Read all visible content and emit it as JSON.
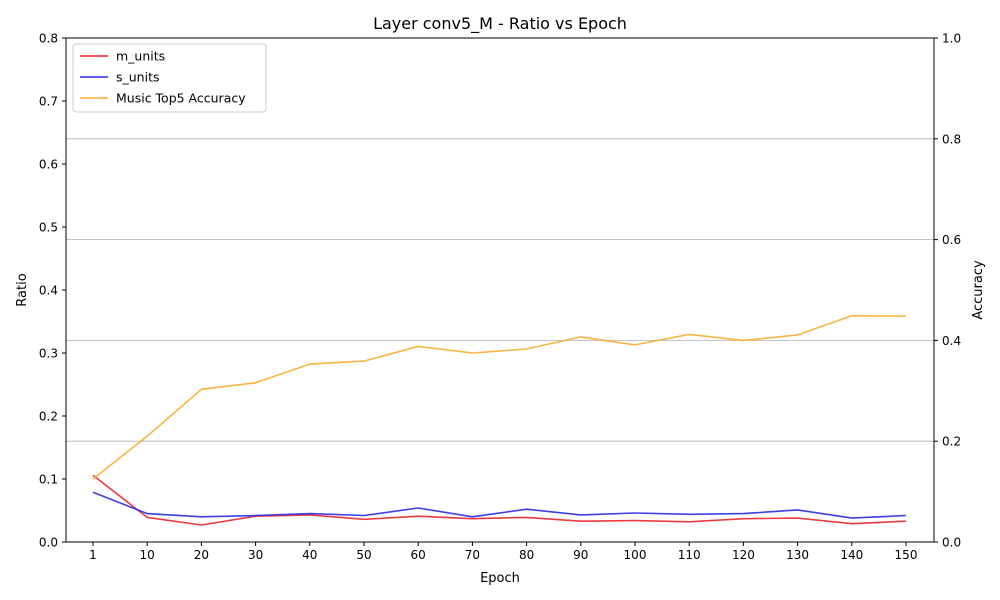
{
  "chart_data": {
    "type": "line",
    "title": "Layer conv5_M - Ratio vs Epoch",
    "xlabel": "Epoch",
    "ylabel_left": "Ratio",
    "ylabel_right": "Accuracy",
    "x": [
      1,
      10,
      20,
      30,
      40,
      50,
      60,
      70,
      80,
      90,
      100,
      110,
      120,
      130,
      140,
      150
    ],
    "x_ticks": [
      "1",
      "10",
      "20",
      "30",
      "40",
      "50",
      "60",
      "70",
      "80",
      "90",
      "100",
      "110",
      "120",
      "130",
      "140",
      "150"
    ],
    "ylim_left": [
      0,
      0.8
    ],
    "ylim_right": [
      0,
      1.0
    ],
    "yticks_left": [
      "0.0",
      "0.1",
      "0.2",
      "0.3",
      "0.4",
      "0.5",
      "0.6",
      "0.7",
      "0.8"
    ],
    "yticks_right": [
      "0.0",
      "0.2",
      "0.4",
      "0.6",
      "0.8",
      "1.0"
    ],
    "grid": "horizontal at right-axis ticks",
    "legend_position": "top-left",
    "series": [
      {
        "name": "m_units",
        "axis": "left",
        "color": "#e8282c",
        "values": [
          0.106,
          0.039,
          0.027,
          0.041,
          0.043,
          0.036,
          0.041,
          0.037,
          0.039,
          0.033,
          0.034,
          0.032,
          0.037,
          0.038,
          0.029,
          0.033
        ]
      },
      {
        "name": "s_units",
        "axis": "left",
        "color": "#2a2ae8",
        "values": [
          0.079,
          0.045,
          0.04,
          0.042,
          0.045,
          0.042,
          0.054,
          0.04,
          0.052,
          0.043,
          0.046,
          0.044,
          0.045,
          0.051,
          0.038,
          0.042
        ]
      },
      {
        "name": "Music Top5 Accuracy",
        "axis": "right",
        "color": "#f6ac2d",
        "values": [
          0.125,
          0.21,
          0.303,
          0.316,
          0.353,
          0.359,
          0.388,
          0.375,
          0.383,
          0.407,
          0.391,
          0.412,
          0.4,
          0.411,
          0.449,
          0.448
        ]
      }
    ]
  }
}
